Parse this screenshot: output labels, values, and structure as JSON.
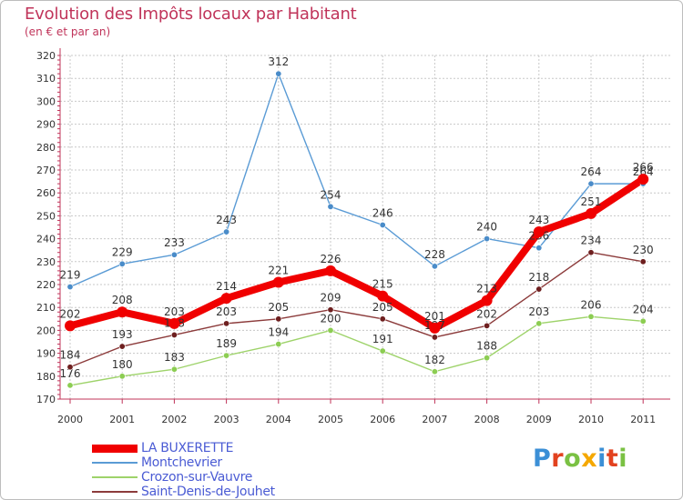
{
  "header": {
    "title": "Evolution des Impôts locaux par Habitant",
    "subtitle": "(en € et par an)"
  },
  "brand": {
    "text": "Proxiti",
    "colors": [
      "#3b8fd6",
      "#e2421f",
      "#7ac143",
      "#f5a800",
      "#3b8fd6",
      "#e2421f",
      "#7ac143"
    ]
  },
  "colors": {
    "title": "#c0345a",
    "axis": "#c0345a",
    "grid": "#c8c8c8",
    "tick_text": "#333333",
    "legend_text": "#4a5bd4"
  },
  "chart_data": {
    "type": "line",
    "title": "Evolution des Impôts locaux par Habitant",
    "subtitle": "(en € et par an)",
    "xlabel": "",
    "ylabel": "",
    "categories": [
      "2000",
      "2001",
      "2002",
      "2003",
      "2004",
      "2005",
      "2006",
      "2007",
      "2008",
      "2009",
      "2010",
      "2011"
    ],
    "ylim": [
      170,
      320
    ],
    "yticks": [
      170,
      180,
      190,
      200,
      210,
      220,
      230,
      240,
      250,
      260,
      270,
      280,
      290,
      300,
      310,
      320
    ],
    "grid": true,
    "legend_position": "bottom-left",
    "series": [
      {
        "name": "Montchevrier",
        "color": "#5a9bd5",
        "point_color": "#4a8cc9",
        "emphasis": false,
        "values": [
          219,
          229,
          233,
          243,
          312,
          254,
          246,
          228,
          240,
          236,
          264,
          264
        ],
        "labels": [
          "219",
          "229",
          "233",
          "243",
          "312",
          "254",
          "246",
          "228",
          "240",
          "236",
          "264",
          "264"
        ]
      },
      {
        "name": "Crozon-sur-Vauvre",
        "color": "#9ed36a",
        "point_color": "#8ccd52",
        "emphasis": false,
        "values": [
          176,
          180,
          183,
          189,
          194,
          200,
          191,
          182,
          188,
          203,
          206,
          204
        ],
        "labels": [
          "176",
          "180",
          "183",
          "189",
          "194",
          "200",
          "191",
          "182",
          "188",
          "203",
          "206",
          "204"
        ]
      },
      {
        "name": "Saint-Denis-de-Jouhet",
        "color": "#8c3b3b",
        "point_color": "#6e1f1f",
        "emphasis": false,
        "values": [
          184,
          193,
          198,
          203,
          205,
          209,
          205,
          197,
          202,
          218,
          234,
          230
        ],
        "labels": [
          "184",
          "193",
          "198",
          "203",
          "205",
          "209",
          "205",
          "197",
          "202",
          "218",
          "234",
          "230"
        ]
      },
      {
        "name": "LA BUXERETTE",
        "color": "#f00000",
        "point_color": "#f00000",
        "emphasis": true,
        "values": [
          202,
          208,
          203,
          214,
          221,
          226,
          215,
          201,
          213,
          243,
          251,
          266
        ],
        "labels": [
          "202",
          "208",
          "203",
          "214",
          "221",
          "226",
          "215",
          "201",
          "213",
          "243",
          "251",
          "266"
        ]
      }
    ],
    "legend_order": [
      "LA BUXERETTE",
      "Montchevrier",
      "Crozon-sur-Vauvre",
      "Saint-Denis-de-Jouhet"
    ]
  }
}
